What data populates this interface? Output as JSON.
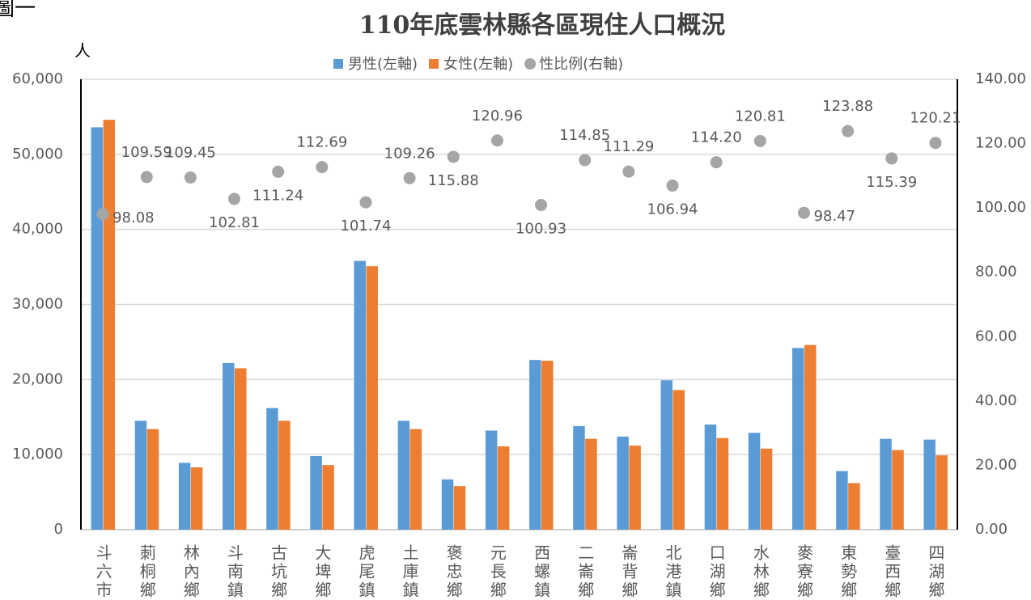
{
  "corner_label": "圖一",
  "chart_data": {
    "type": "bar",
    "title": "110年底雲林縣各區現住人口概況",
    "y_label": "人",
    "categories": [
      "斗六市",
      "莿桐鄉",
      "林內鄉",
      "斗南鎮",
      "古坑鄉",
      "大埤鄉",
      "虎尾鎮",
      "土庫鎮",
      "褒忠鄉",
      "元長鄉",
      "西螺鎮",
      "二崙鄉",
      "崙背鄉",
      "北港鎮",
      "口湖鄉",
      "水林鄉",
      "麥寮鄉",
      "東勢鄉",
      "臺西鄉",
      "四湖鄉"
    ],
    "series": [
      {
        "name": "男性(左軸)",
        "type": "bar",
        "color": "#5b9bd5",
        "values": [
          53600,
          14500,
          8900,
          22200,
          16200,
          9800,
          35800,
          14500,
          6700,
          13200,
          22600,
          13800,
          12400,
          19900,
          14000,
          12900,
          24200,
          7800,
          12100,
          12000
        ]
      },
      {
        "name": "女性(左軸)",
        "type": "bar",
        "color": "#ed7d31",
        "values": [
          54600,
          13400,
          8300,
          21500,
          14500,
          8600,
          35100,
          13400,
          5800,
          11100,
          22500,
          12100,
          11200,
          18600,
          12200,
          10800,
          24600,
          6200,
          10600,
          9900
        ]
      },
      {
        "name": "性比例(右軸)",
        "type": "scatter",
        "axis": "y2",
        "color": "#a5a5a5",
        "values": [
          98.08,
          109.59,
          109.45,
          102.81,
          111.24,
          112.69,
          101.74,
          109.26,
          115.88,
          120.96,
          100.93,
          114.85,
          111.29,
          106.94,
          114.2,
          120.81,
          98.47,
          123.88,
          115.39,
          120.21
        ],
        "value_labels": [
          "98.08",
          "109.59",
          "109.45",
          "102.81",
          "111.24",
          "112.69",
          "101.74",
          "109.26",
          "115.88",
          "120.96",
          "100.93",
          "114.85",
          "111.29",
          "106.94",
          "114.20",
          "120.81",
          "98.47",
          "123.88",
          "115.39",
          "120.21"
        ]
      }
    ],
    "ylim": [
      0,
      60000
    ],
    "yticks": [
      0,
      {
        "value": 10000,
        "label": "10,000"
      },
      {
        "value": 20000,
        "label": "20,000"
      },
      {
        "value": 30000,
        "label": "30,000"
      },
      {
        "value": 40000,
        "label": "40,000"
      },
      {
        "value": 50000,
        "label": "50,000"
      },
      {
        "value": 60000,
        "label": "60,000"
      }
    ],
    "y2lim": [
      0,
      140
    ],
    "y2ticks": [
      {
        "value": 0,
        "label": "0.00"
      },
      {
        "value": 20,
        "label": "20.00"
      },
      {
        "value": 40,
        "label": "40.00"
      },
      {
        "value": 60,
        "label": "60.00"
      },
      {
        "value": 80,
        "label": "80.00"
      },
      {
        "value": 100,
        "label": "100.00"
      },
      {
        "value": 120,
        "label": "120.00"
      },
      {
        "value": 140,
        "label": "140.00"
      }
    ],
    "grid": true,
    "legend": "top"
  }
}
